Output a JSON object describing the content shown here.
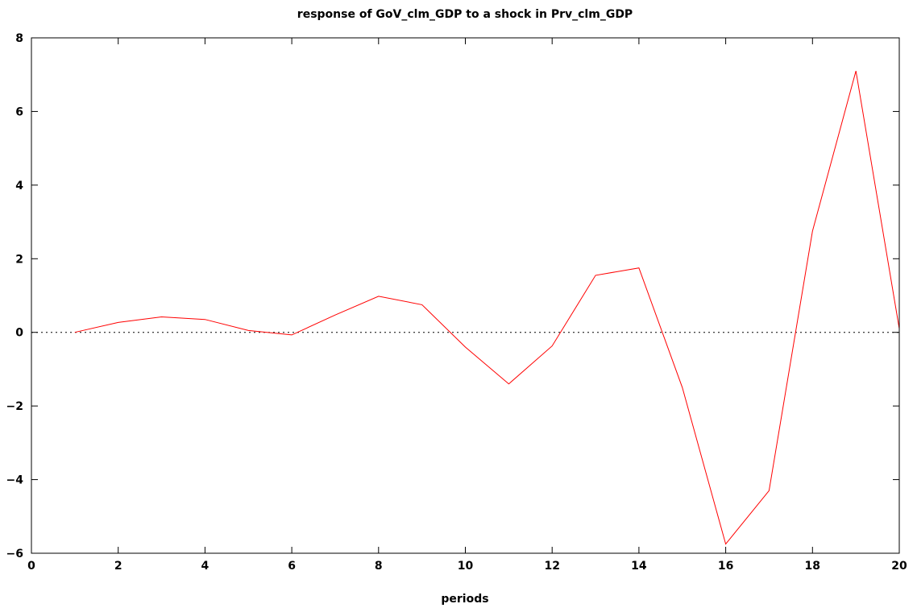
{
  "chart_data": {
    "type": "line",
    "title": "response of GoV_clm_GDP to a shock in Prv_clm_GDP",
    "xlabel": "periods",
    "ylabel": "",
    "xlim": [
      0,
      20
    ],
    "ylim": [
      -6,
      8
    ],
    "xticks": [
      0,
      2,
      4,
      6,
      8,
      10,
      12,
      14,
      16,
      18,
      20
    ],
    "yticks": [
      -6,
      -4,
      -2,
      0,
      2,
      4,
      6,
      8
    ],
    "x_tick_labels": [
      "0",
      "2",
      "4",
      "6",
      "8",
      "10",
      "12",
      "14",
      "16",
      "18",
      "20"
    ],
    "y_tick_labels": [
      "−6",
      "−4",
      "−2",
      "0",
      "2",
      "4",
      "6",
      "8"
    ],
    "grid": false,
    "zero_line": {
      "y": 0,
      "style": "dotted",
      "color": "#000000"
    },
    "series": [
      {
        "color": "#ff0000",
        "x": [
          1,
          2,
          3,
          4,
          5,
          6,
          7,
          8,
          9,
          10,
          11,
          12,
          13,
          14,
          15,
          16,
          17,
          18,
          19,
          20
        ],
        "values": [
          0.0,
          0.27,
          0.42,
          0.35,
          0.05,
          -0.07,
          0.47,
          0.98,
          0.75,
          -0.4,
          -1.4,
          -0.37,
          1.55,
          1.75,
          -1.5,
          -5.75,
          -4.3,
          2.75,
          7.1,
          0.1
        ]
      }
    ]
  }
}
